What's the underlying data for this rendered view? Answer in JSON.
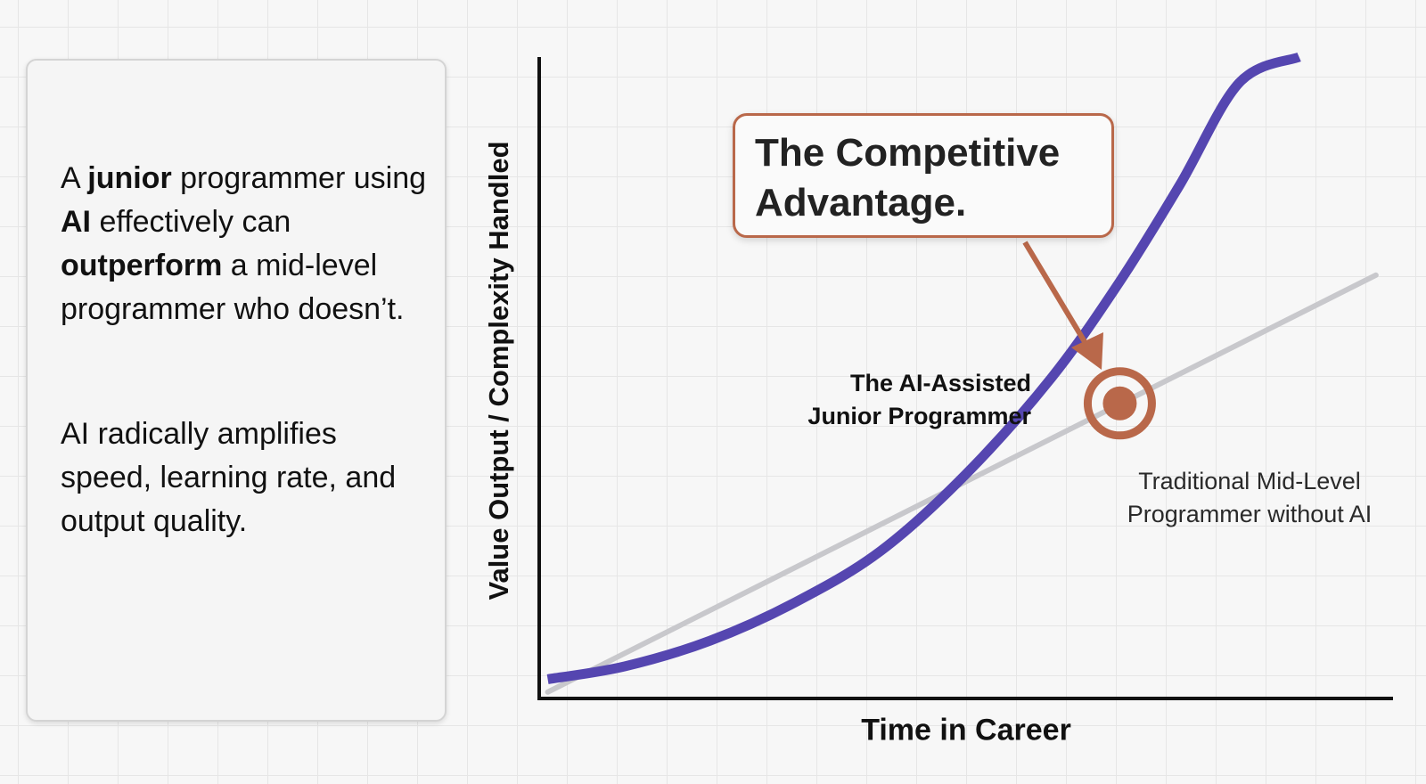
{
  "panel": {
    "para1": [
      {
        "text": "A ",
        "bold": false
      },
      {
        "text": "junior",
        "bold": true
      },
      {
        "text": " programmer using ",
        "bold": false
      },
      {
        "text": "AI",
        "bold": true
      },
      {
        "text": " effectively can ",
        "bold": false
      },
      {
        "text": "outperform",
        "bold": true
      },
      {
        "text": " a mid-level programmer who doesn’t.",
        "bold": false
      }
    ],
    "para2": "AI radically amplifies speed, learning rate, and output quality."
  },
  "callout": {
    "line1": "The Competitive",
    "line2": "Advantage."
  },
  "colors": {
    "ai_curve": "#5546b0",
    "traditional_line": "#c8c8cc",
    "accent": "#b9684a",
    "axis": "#111111"
  },
  "chart_data": {
    "type": "line",
    "title": "",
    "xlabel": "Time in Career",
    "ylabel": "Value Output / Complexity Handled",
    "xlim": [
      0,
      10
    ],
    "ylim": [
      0,
      10
    ],
    "grid": true,
    "ticks": false,
    "series": [
      {
        "name": "The AI-Assisted Junior Programmer",
        "color": "#5546b0",
        "shape": "exponential",
        "x": [
          0.1,
          1,
          2,
          3,
          4,
          5,
          6,
          6.8,
          7.5,
          8.2,
          8.9
        ],
        "y": [
          0.3,
          0.5,
          0.9,
          1.5,
          2.3,
          3.5,
          5.0,
          6.5,
          8.0,
          9.6,
          10.0
        ]
      },
      {
        "name": "Traditional Mid-Level Programmer without AI",
        "color": "#c8c8cc",
        "shape": "linear",
        "x": [
          0.1,
          9.8
        ],
        "y": [
          0.1,
          6.6
        ]
      }
    ],
    "annotations": [
      {
        "text": "The Competitive Advantage.",
        "points_to": "crossover",
        "x": 6.8,
        "y": 4.6
      }
    ],
    "labels": {
      "ai_line1": "The AI-Assisted",
      "ai_line2": "Junior Programmer",
      "trad_line1": "Traditional Mid-Level",
      "trad_line2": "Programmer without AI"
    }
  }
}
